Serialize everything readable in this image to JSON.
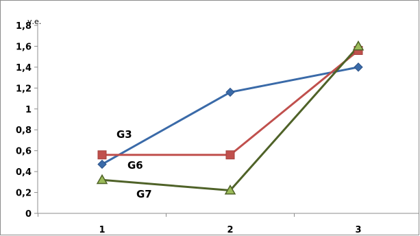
{
  "chart_data": {
    "type": "line",
    "categories": [
      "1",
      "2",
      "3"
    ],
    "ylabel": "у.е.",
    "ylim": [
      0,
      1.8
    ],
    "yticks": [
      0,
      0.2,
      0.4,
      0.6,
      0.8,
      1,
      1.2,
      1.4,
      1.6,
      1.8
    ],
    "ytick_labels": [
      "0",
      "0,2",
      "0,4",
      "0,6",
      "0,8",
      "1",
      "1,2",
      "1,4",
      "1,6",
      "1,8"
    ],
    "grid": false,
    "legend": "none",
    "series": [
      {
        "name": "G3",
        "values": [
          0.47,
          1.16,
          1.4
        ],
        "color": "#3a6aa8",
        "marker": "diamond"
      },
      {
        "name": "G6",
        "values": [
          0.56,
          0.56,
          1.56
        ],
        "color": "#c0504d",
        "marker": "square"
      },
      {
        "name": "G7",
        "values": [
          0.32,
          0.22,
          1.6
        ],
        "color": "#4f6228",
        "marker": "triangle",
        "marker_fill": "#9bbb59"
      }
    ]
  }
}
